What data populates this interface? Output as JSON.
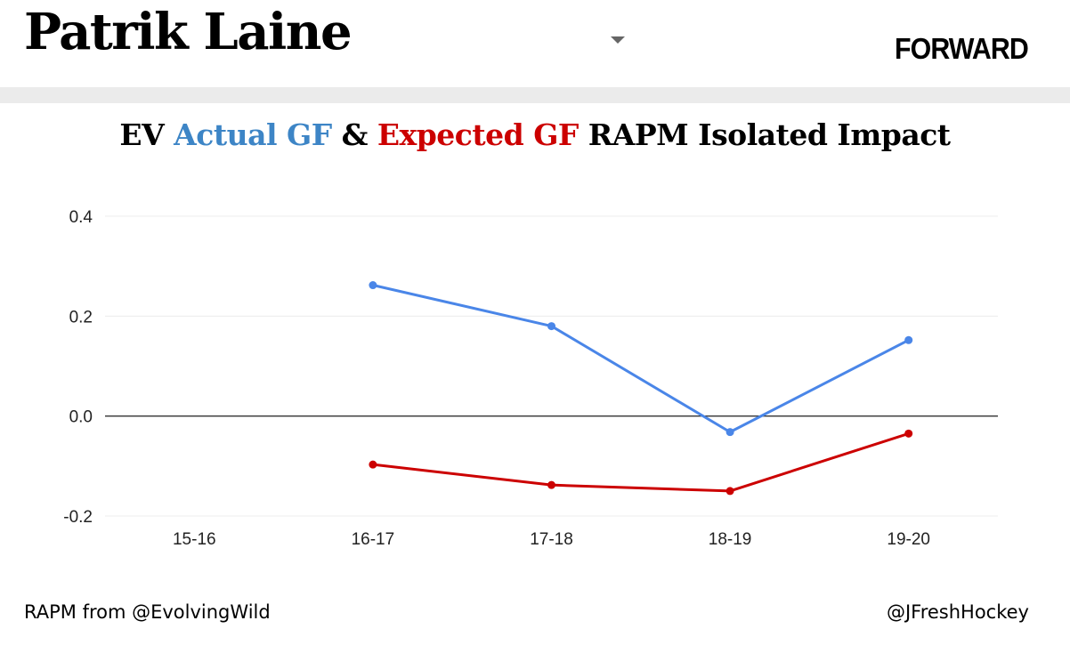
{
  "header": {
    "player_name": "Patrik Laine",
    "dropdown_icon": "triangle-down-icon",
    "position": "FORWARD"
  },
  "title": {
    "prefix": "EV ",
    "actual": "Actual GF",
    "amp": " & ",
    "expected": "Expected GF",
    "suffix": " RAPM Isolated Impact"
  },
  "colors": {
    "actual": "#4a86e8",
    "expected": "#cc0000",
    "actual_title": "#3d85c6",
    "expected_title": "#cc0000",
    "divider": "#ebebeb"
  },
  "chart_data": {
    "type": "line",
    "title": "EV Actual GF & Expected GF RAPM Isolated Impact",
    "categories": [
      "15-16",
      "16-17",
      "17-18",
      "18-19",
      "19-20"
    ],
    "series": [
      {
        "values": [
          null,
          0.262,
          0.18,
          -0.032,
          0.152
        ],
        "color": "#4a86e8"
      },
      {
        "values": [
          null,
          -0.097,
          -0.138,
          -0.15,
          -0.035
        ],
        "color": "#cc0000"
      }
    ],
    "yticks": [
      "0.4",
      "0.2",
      "0.0",
      "-0.2"
    ],
    "ylim": [
      -0.2,
      0.4
    ],
    "grid": true,
    "zero_line": true
  },
  "footer": {
    "source": "RAPM from @EvolvingWild",
    "credit": "@JFreshHockey"
  }
}
